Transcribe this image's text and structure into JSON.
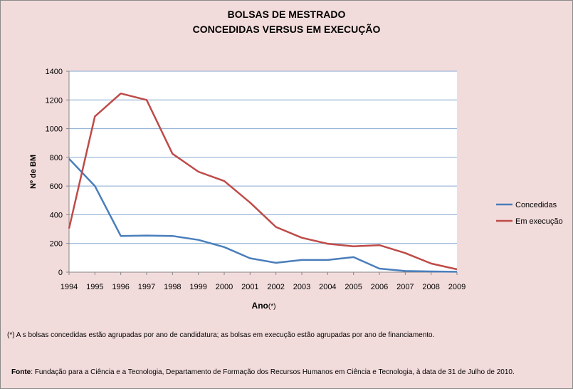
{
  "title_line1": "BOLSAS DE MESTRADO",
  "title_line2": "CONCEDIDAS VERSUS EM EXECUÇÃO",
  "note": "(*) A s bolsas concedidas estão agrupadas por ano de candidatura; as bolsas em execução estão agrupadas por ano de financiamento.",
  "source_label": "Fonte",
  "source_text": ": Fundação para a Ciência e a Tecnologia, Departamento de Formação dos Recursos Humanos em Ciência e Tecnologia, à data de 31 de Julho de 2010.",
  "chart_data": {
    "type": "line",
    "title": "BOLSAS DE MESTRADO CONCEDIDAS VERSUS EM EXECUÇÃO",
    "xlabel": "Ano",
    "xlabel_suffix": "(*)",
    "ylabel": "Nº de BM",
    "ylim": [
      0,
      1400
    ],
    "yticks": [
      0,
      200,
      400,
      600,
      800,
      1000,
      1200,
      1400
    ],
    "grid": true,
    "legend_position": "right",
    "x": [
      "1994",
      "1995",
      "1996",
      "1997",
      "1998",
      "1999",
      "2000",
      "2001",
      "2002",
      "2003",
      "2004",
      "2005",
      "2006",
      "2007",
      "2008",
      "2009"
    ],
    "series": [
      {
        "name": "Concedidas",
        "color": "#4a7ebb",
        "values": [
          790,
          600,
          252,
          255,
          252,
          225,
          175,
          97,
          65,
          85,
          85,
          105,
          25,
          8,
          5,
          3
        ]
      },
      {
        "name": "Em execução",
        "color": "#be4b48",
        "values": [
          305,
          1085,
          1245,
          1200,
          825,
          700,
          635,
          485,
          315,
          240,
          198,
          180,
          188,
          133,
          60,
          20
        ]
      }
    ]
  }
}
